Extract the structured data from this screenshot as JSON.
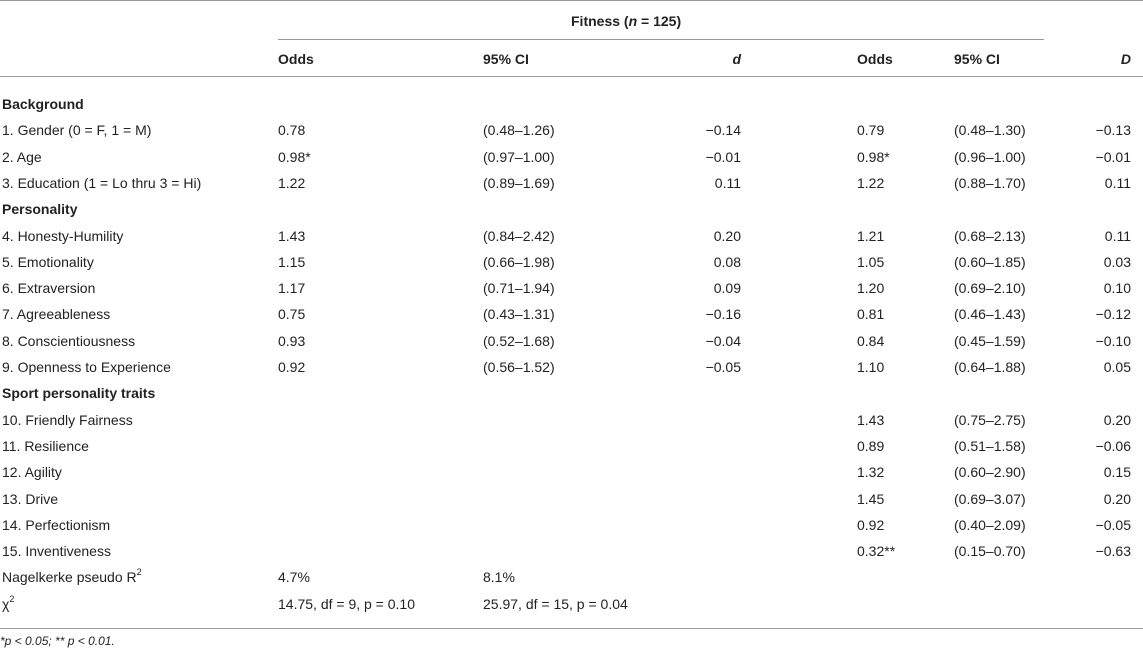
{
  "table": {
    "group_header": {
      "prefix": "Fitness (",
      "n_symbol": "n",
      "suffix": " = 125)"
    },
    "columns": [
      "Odds",
      "95% CI",
      "d",
      "Odds",
      "95% CI",
      "D"
    ],
    "sections": [
      {
        "title": "Background",
        "rows": [
          {
            "label": "1.  Gender (0 = F, 1 = M)",
            "odds1": "0.78",
            "ci1": "(0.48–1.26)",
            "d1": "−0.14",
            "odds2": "0.79",
            "ci2": "(0.48–1.30)",
            "d2": "−0.13"
          },
          {
            "label": "2.  Age",
            "odds1": "0.98*",
            "ci1": "(0.97–1.00)",
            "d1": "−0.01",
            "odds2": "0.98*",
            "ci2": "(0.96–1.00)",
            "d2": "−0.01"
          },
          {
            "label": "3.  Education (1 = Lo thru 3 = Hi)",
            "odds1": "1.22",
            "ci1": "(0.89–1.69)",
            "d1": "0.11",
            "odds2": "1.22",
            "ci2": "(0.88–1.70)",
            "d2": "0.11"
          }
        ]
      },
      {
        "title": "Personality",
        "rows": [
          {
            "label": "4.  Honesty-Humility",
            "odds1": "1.43",
            "ci1": "(0.84–2.42)",
            "d1": "0.20",
            "odds2": "1.21",
            "ci2": "(0.68–2.13)",
            "d2": "0.11"
          },
          {
            "label": "5.  Emotionality",
            "odds1": "1.15",
            "ci1": "(0.66–1.98)",
            "d1": "0.08",
            "odds2": "1.05",
            "ci2": "(0.60–1.85)",
            "d2": "0.03"
          },
          {
            "label": "6.  Extraversion",
            "odds1": "1.17",
            "ci1": "(0.71–1.94)",
            "d1": "0.09",
            "odds2": "1.20",
            "ci2": "(0.69–2.10)",
            "d2": "0.10"
          },
          {
            "label": "7.  Agreeableness",
            "odds1": "0.75",
            "ci1": "(0.43–1.31)",
            "d1": "−0.16",
            "odds2": "0.81",
            "ci2": "(0.46–1.43)",
            "d2": "−0.12"
          },
          {
            "label": "8.  Conscientiousness",
            "odds1": "0.93",
            "ci1": "(0.52–1.68)",
            "d1": "−0.04",
            "odds2": "0.84",
            "ci2": "(0.45–1.59)",
            "d2": "−0.10"
          },
          {
            "label": "9.  Openness to Experience",
            "odds1": "0.92",
            "ci1": "(0.56–1.52)",
            "d1": "−0.05",
            "odds2": "1.10",
            "ci2": "(0.64–1.88)",
            "d2": "0.05"
          }
        ]
      },
      {
        "title": "Sport personality traits",
        "rows": [
          {
            "label": "10.  Friendly Fairness",
            "odds1": "",
            "ci1": "",
            "d1": "",
            "odds2": "1.43",
            "ci2": "(0.75–2.75)",
            "d2": "0.20"
          },
          {
            "label": "11.  Resilience",
            "odds1": "",
            "ci1": "",
            "d1": "",
            "odds2": "0.89",
            "ci2": "(0.51–1.58)",
            "d2": "−0.06"
          },
          {
            "label": "12.  Agility",
            "odds1": "",
            "ci1": "",
            "d1": "",
            "odds2": "1.32",
            "ci2": "(0.60–2.90)",
            "d2": "0.15"
          },
          {
            "label": "13.  Drive",
            "odds1": "",
            "ci1": "",
            "d1": "",
            "odds2": "1.45",
            "ci2": "(0.69–3.07)",
            "d2": "0.20"
          },
          {
            "label": "14.  Perfectionism",
            "odds1": "",
            "ci1": "",
            "d1": "",
            "odds2": "0.92",
            "ci2": "(0.40–2.09)",
            "d2": "−0.05"
          },
          {
            "label": "15.  Inventiveness",
            "odds1": "",
            "ci1": "",
            "d1": "",
            "odds2": "0.32**",
            "ci2": "(0.15–0.70)",
            "d2": "−0.63"
          }
        ]
      }
    ],
    "nagelkerke": {
      "label": "Nagelkerke pseudo R",
      "sup": "2",
      "v1": "4.7%",
      "v2": "8.1%"
    },
    "chi": {
      "label": "χ",
      "sup": "2",
      "v1": "14.75, df = 9, p = 0.10",
      "v2": "25.97, df = 15, p = 0.04"
    },
    "note": "*p < 0.05; ** p < 0.01."
  }
}
